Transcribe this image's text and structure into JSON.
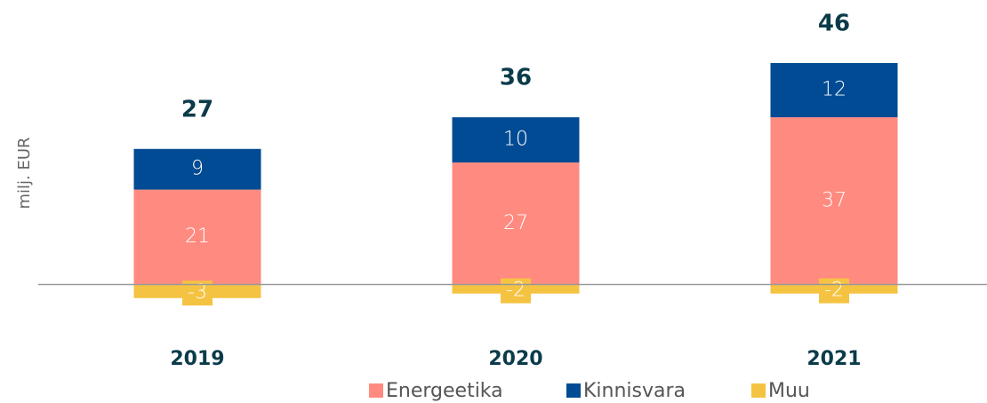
{
  "chart_data": {
    "type": "stacked-bar",
    "y_label": "milj. EUR",
    "categories": [
      "2019",
      "2020",
      "2021"
    ],
    "series": [
      {
        "name": "Energeetika",
        "color": "#ff8a80",
        "values": [
          21,
          27,
          37
        ]
      },
      {
        "name": "Kinnisvara",
        "color": "#004b93",
        "values": [
          9,
          10,
          12
        ]
      },
      {
        "name": "Muu",
        "color": "#f5c342",
        "values": [
          -3,
          -2,
          -2
        ]
      }
    ],
    "totals": [
      27,
      36,
      46
    ],
    "ylim": [
      -5,
      60
    ]
  }
}
